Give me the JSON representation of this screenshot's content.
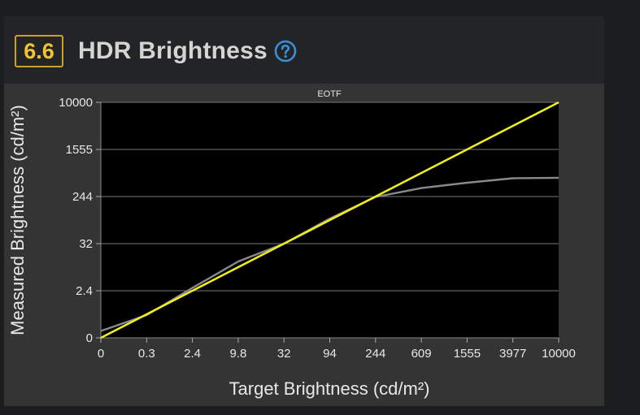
{
  "header": {
    "score": "6.6",
    "title": "HDR Brightness",
    "help_icon": "question-circle-icon"
  },
  "colors": {
    "accent": "#f2c230",
    "target_line": "#f0ee1e",
    "measured_line": "#8a8a8a",
    "plot_background": "#000000",
    "help_icon": "#3b8fd9"
  },
  "chart_data": {
    "type": "line",
    "title": "EOTF",
    "xlabel": "Target Brightness (cd/m²)",
    "ylabel": "Measured Brightness (cd/m²)",
    "x_ticks": [
      "0",
      "0.3",
      "2.4",
      "9.8",
      "32",
      "94",
      "244",
      "609",
      "1555",
      "3977",
      "10000"
    ],
    "y_ticks": [
      "0",
      "2.4",
      "32",
      "244",
      "1555",
      "10000"
    ],
    "grid": "horizontal",
    "series": [
      {
        "style": "measured",
        "color": "#8a8a8a",
        "x": [
          "0",
          "0.3",
          "2.4",
          "9.8",
          "32",
          "94",
          "244",
          "609",
          "1555",
          "3977",
          "10000"
        ],
        "y": [
          0.01,
          0.3,
          2.8,
          12,
          32,
          94,
          240,
          340,
          420,
          500,
          510
        ]
      },
      {
        "style": "target",
        "color": "#f0ee1e",
        "x": [
          "0",
          "0.3",
          "2.4",
          "9.8",
          "32",
          "94",
          "244",
          "609",
          "1555",
          "3977",
          "10000"
        ],
        "y": [
          0,
          0.3,
          2.4,
          9.8,
          32,
          94,
          244,
          609,
          1555,
          3977,
          10000
        ]
      }
    ]
  }
}
